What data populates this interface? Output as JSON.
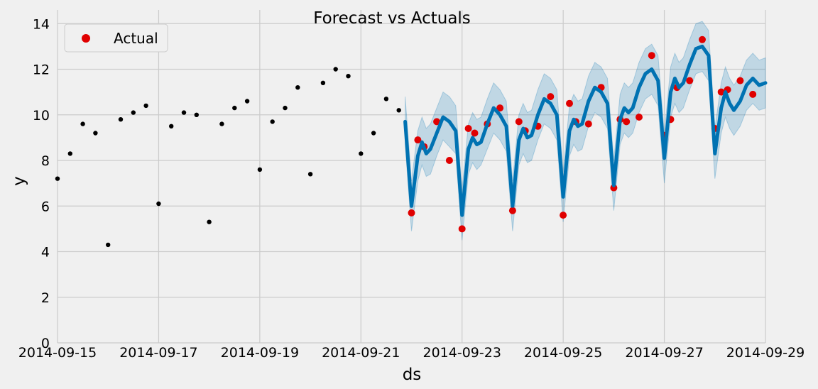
{
  "chart_data": {
    "type": "scatter+line",
    "title": "Forecast vs Actuals",
    "xlabel": "ds",
    "ylabel": "y",
    "x_tick_labels": [
      "2014-09-15",
      "2014-09-17",
      "2014-09-19",
      "2014-09-21",
      "2014-09-23",
      "2014-09-25",
      "2014-09-27",
      "2014-09-29"
    ],
    "y_tick_labels": [
      "0",
      "2",
      "4",
      "6",
      "8",
      "10",
      "12",
      "14"
    ],
    "xlim": [
      "2014-09-15 00:00",
      "2014-09-29 00:00"
    ],
    "ylim": [
      0,
      14.6
    ],
    "grid": true,
    "legend": {
      "entries": [
        "Actual"
      ],
      "placement": "top-left"
    },
    "colors": {
      "background": "#f0f0f0",
      "grid": "#cbcbcb",
      "history_points": "#000000",
      "actual_points": "#e00000",
      "forecast_line": "#0072b2",
      "interval_band": "#0072b2"
    },
    "daily_pattern_note_hours": [
      0,
      3,
      5,
      7,
      9,
      12,
      15,
      18,
      21,
      24
    ],
    "history": {
      "name": "",
      "x": [
        "2014-09-15 00:00",
        "2014-09-15 06:00",
        "2014-09-15 12:00",
        "2014-09-15 18:00",
        "2014-09-16 00:00",
        "2014-09-16 06:00",
        "2014-09-16 12:00",
        "2014-09-16 18:00",
        "2014-09-17 00:00",
        "2014-09-17 06:00",
        "2014-09-17 12:00",
        "2014-09-17 18:00",
        "2014-09-18 00:00",
        "2014-09-18 06:00",
        "2014-09-18 12:00",
        "2014-09-18 18:00",
        "2014-09-19 00:00",
        "2014-09-19 06:00",
        "2014-09-19 12:00",
        "2014-09-19 18:00",
        "2014-09-20 00:00",
        "2014-09-20 06:00",
        "2014-09-20 12:00",
        "2014-09-20 18:00",
        "2014-09-21 00:00",
        "2014-09-21 06:00",
        "2014-09-21 12:00",
        "2014-09-21 18:00"
      ],
      "y": [
        7.2,
        8.3,
        9.6,
        9.2,
        4.3,
        9.8,
        10.1,
        10.4,
        6.1,
        9.5,
        10.1,
        10.0,
        5.3,
        9.6,
        10.3,
        10.6,
        7.6,
        9.7,
        10.3,
        11.2,
        7.4,
        11.4,
        12.0,
        11.7,
        8.3,
        9.2,
        10.7,
        10.2
      ]
    },
    "actual": {
      "name": "Actual",
      "x": [
        "2014-09-22 00:00",
        "2014-09-22 03:00",
        "2014-09-22 06:00",
        "2014-09-22 12:00",
        "2014-09-22 18:00",
        "2014-09-23 00:00",
        "2014-09-23 03:00",
        "2014-09-23 06:00",
        "2014-09-23 12:00",
        "2014-09-23 18:00",
        "2014-09-24 00:00",
        "2014-09-24 03:00",
        "2014-09-24 06:00",
        "2014-09-24 12:00",
        "2014-09-24 18:00",
        "2014-09-25 00:00",
        "2014-09-25 03:00",
        "2014-09-25 06:00",
        "2014-09-25 12:00",
        "2014-09-25 18:00",
        "2014-09-26 00:00",
        "2014-09-26 03:00",
        "2014-09-26 06:00",
        "2014-09-26 12:00",
        "2014-09-26 18:00",
        "2014-09-27 00:00",
        "2014-09-27 03:00",
        "2014-09-27 06:00",
        "2014-09-27 12:00",
        "2014-09-27 18:00",
        "2014-09-28 00:00",
        "2014-09-28 03:00",
        "2014-09-28 06:00",
        "2014-09-28 12:00",
        "2014-09-28 18:00"
      ],
      "y": [
        5.7,
        8.9,
        8.6,
        9.7,
        8.0,
        5.0,
        9.4,
        9.2,
        9.6,
        10.3,
        5.8,
        9.7,
        9.3,
        9.5,
        10.8,
        5.6,
        10.5,
        9.7,
        9.6,
        11.2,
        6.8,
        9.8,
        9.7,
        9.9,
        12.6,
        9.1,
        9.8,
        11.2,
        11.5,
        13.3,
        9.4,
        11.0,
        11.1,
        11.5,
        10.9
      ]
    },
    "forecast": {
      "name": "",
      "x": [
        "2014-09-21 21:00",
        "2014-09-22 00:00",
        "2014-09-22 03:00",
        "2014-09-22 05:00",
        "2014-09-22 07:00",
        "2014-09-22 09:00",
        "2014-09-22 12:00",
        "2014-09-22 15:00",
        "2014-09-22 18:00",
        "2014-09-22 21:00",
        "2014-09-23 00:00",
        "2014-09-23 03:00",
        "2014-09-23 05:00",
        "2014-09-23 07:00",
        "2014-09-23 09:00",
        "2014-09-23 12:00",
        "2014-09-23 15:00",
        "2014-09-23 18:00",
        "2014-09-23 21:00",
        "2014-09-24 00:00",
        "2014-09-24 03:00",
        "2014-09-24 05:00",
        "2014-09-24 07:00",
        "2014-09-24 09:00",
        "2014-09-24 12:00",
        "2014-09-24 15:00",
        "2014-09-24 18:00",
        "2014-09-24 21:00",
        "2014-09-25 00:00",
        "2014-09-25 03:00",
        "2014-09-25 05:00",
        "2014-09-25 07:00",
        "2014-09-25 09:00",
        "2014-09-25 12:00",
        "2014-09-25 15:00",
        "2014-09-25 18:00",
        "2014-09-25 21:00",
        "2014-09-26 00:00",
        "2014-09-26 03:00",
        "2014-09-26 05:00",
        "2014-09-26 07:00",
        "2014-09-26 09:00",
        "2014-09-26 12:00",
        "2014-09-26 15:00",
        "2014-09-26 18:00",
        "2014-09-26 21:00",
        "2014-09-27 00:00",
        "2014-09-27 03:00",
        "2014-09-27 05:00",
        "2014-09-27 07:00",
        "2014-09-27 09:00",
        "2014-09-27 12:00",
        "2014-09-27 15:00",
        "2014-09-27 18:00",
        "2014-09-27 21:00",
        "2014-09-28 00:00",
        "2014-09-28 03:00",
        "2014-09-28 05:00",
        "2014-09-28 07:00",
        "2014-09-28 09:00",
        "2014-09-28 12:00",
        "2014-09-28 15:00",
        "2014-09-28 18:00",
        "2014-09-28 21:00",
        "2014-09-29 00:00"
      ],
      "yhat": [
        9.7,
        6.0,
        8.2,
        8.8,
        8.3,
        8.5,
        9.2,
        9.9,
        9.7,
        9.3,
        5.6,
        8.5,
        9.0,
        8.7,
        8.8,
        9.6,
        10.3,
        10.0,
        9.5,
        6.0,
        8.9,
        9.4,
        9.0,
        9.1,
        10.0,
        10.7,
        10.5,
        10.0,
        6.4,
        9.3,
        9.8,
        9.5,
        9.6,
        10.6,
        11.2,
        11.0,
        10.5,
        6.9,
        9.8,
        10.3,
        10.1,
        10.3,
        11.2,
        11.8,
        12.0,
        11.5,
        8.1,
        11.0,
        11.6,
        11.2,
        11.4,
        12.2,
        12.9,
        13.0,
        12.6,
        8.3,
        10.3,
        11.0,
        10.5,
        10.2,
        10.6,
        11.3,
        11.6,
        11.3,
        11.4
      ],
      "yhat_lower": [
        8.7,
        4.9,
        7.1,
        7.8,
        7.3,
        7.4,
        8.2,
        8.9,
        8.6,
        8.3,
        4.5,
        7.4,
        7.9,
        7.6,
        7.8,
        8.5,
        9.2,
        8.9,
        8.4,
        4.9,
        7.8,
        8.3,
        7.9,
        8.0,
        8.9,
        9.6,
        9.4,
        8.9,
        5.3,
        8.2,
        8.7,
        8.4,
        8.5,
        9.5,
        10.1,
        9.9,
        9.4,
        5.8,
        8.7,
        9.2,
        9.0,
        9.2,
        10.1,
        10.7,
        10.9,
        10.4,
        7.0,
        9.9,
        10.5,
        10.1,
        10.3,
        11.1,
        11.8,
        11.9,
        11.5,
        7.2,
        9.2,
        9.9,
        9.4,
        9.1,
        9.5,
        10.2,
        10.5,
        10.2,
        10.3
      ],
      "yhat_upper": [
        10.8,
        7.1,
        9.3,
        9.9,
        9.4,
        9.6,
        10.3,
        11.0,
        10.8,
        10.4,
        6.7,
        9.6,
        10.1,
        9.8,
        9.9,
        10.7,
        11.4,
        11.1,
        10.6,
        7.1,
        10.0,
        10.5,
        10.1,
        10.2,
        11.1,
        11.8,
        11.6,
        11.1,
        7.5,
        10.4,
        10.9,
        10.6,
        10.7,
        11.7,
        12.3,
        12.1,
        11.6,
        8.0,
        10.9,
        11.4,
        11.2,
        11.4,
        12.3,
        12.9,
        13.1,
        12.6,
        9.2,
        12.1,
        12.7,
        12.3,
        12.5,
        13.3,
        14.0,
        14.1,
        13.7,
        9.4,
        11.4,
        12.1,
        11.6,
        11.3,
        11.7,
        12.4,
        12.7,
        12.4,
        12.5
      ]
    }
  }
}
